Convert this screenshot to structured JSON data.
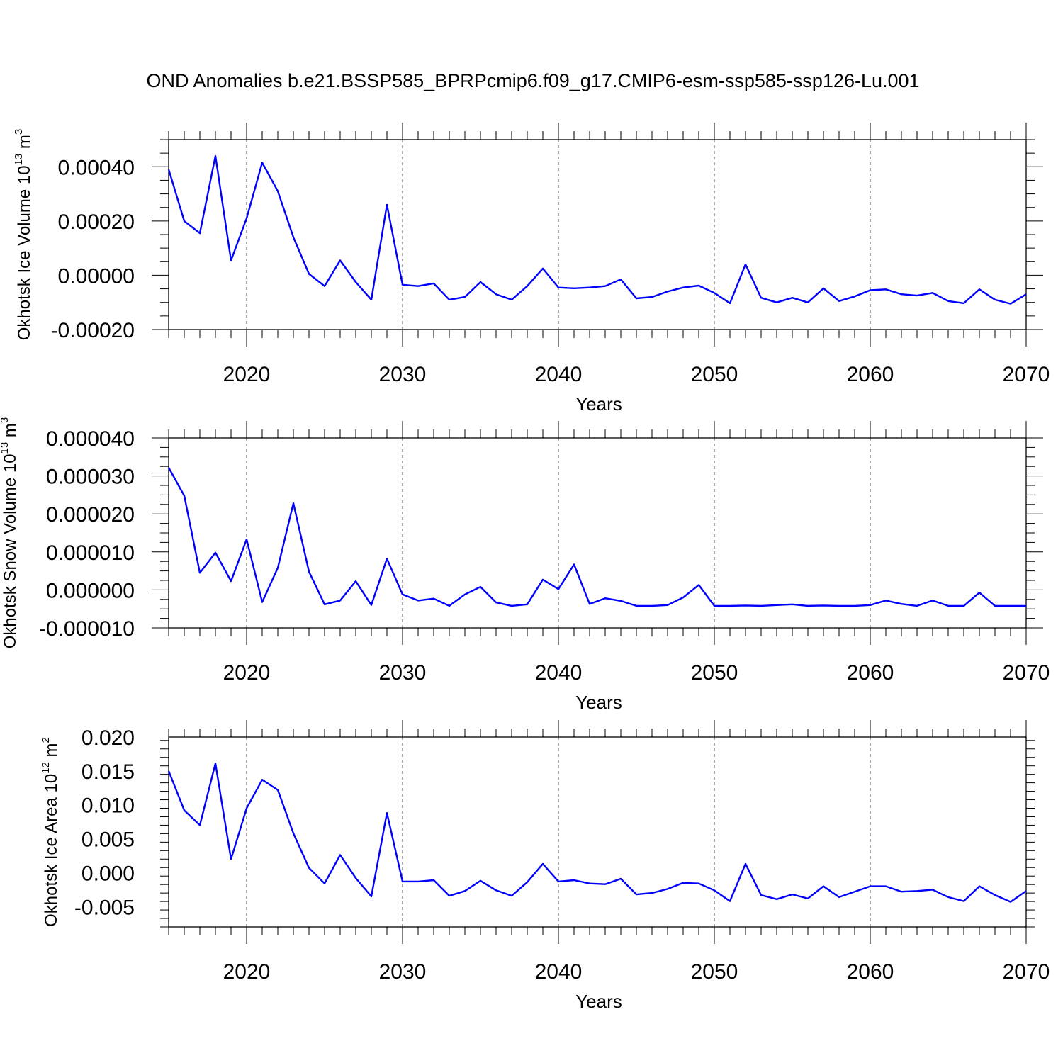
{
  "figure": {
    "title": "OND Anomalies b.e21.BSSP585_BPRPcmip6.f09_g17.CMIP6-esm-ssp585-ssp126-Lu.001"
  },
  "style": {
    "line_color": "#0000ff",
    "grid_color": "#555555"
  },
  "chart_data": [
    {
      "type": "line",
      "xlabel": "Years",
      "ylabel": "Okhotsk Ice Volume 10",
      "ylabel_exp": "13",
      "ylabel_unit": "m",
      "ylabel_unit_exp": "3",
      "xlim": [
        2015,
        2070
      ],
      "ylim": [
        -0.0002,
        0.0005
      ],
      "x_ticks": [
        2020,
        2030,
        2040,
        2050,
        2060,
        2070
      ],
      "x_tick_labels": [
        "2020",
        "2030",
        "2040",
        "2050",
        "2060",
        "2070"
      ],
      "y_ticks": [
        -0.0002,
        0.0,
        0.0002,
        0.0004
      ],
      "y_tick_labels": [
        "-0.00020",
        "0.00000",
        "0.00020",
        "0.00040"
      ],
      "grid": "vertical dashed at major x ticks",
      "x": [
        2015,
        2016,
        2017,
        2018,
        2019,
        2020,
        2021,
        2022,
        2023,
        2024,
        2025,
        2026,
        2027,
        2028,
        2029,
        2030,
        2031,
        2032,
        2033,
        2034,
        2035,
        2036,
        2037,
        2038,
        2039,
        2040,
        2041,
        2042,
        2043,
        2044,
        2045,
        2046,
        2047,
        2048,
        2049,
        2050,
        2051,
        2052,
        2053,
        2054,
        2055,
        2056,
        2057,
        2058,
        2059,
        2060,
        2061,
        2062,
        2063,
        2064,
        2065,
        2066,
        2067,
        2068,
        2069,
        2070
      ],
      "series": [
        {
          "values": [
            0.00039,
            0.0002,
            0.000155,
            0.00044,
            5.5e-05,
            0.00021,
            0.000415,
            0.00031,
            0.00014,
            5e-06,
            -4e-05,
            5.5e-05,
            -2.5e-05,
            -9e-05,
            0.00026,
            -3.5e-05,
            -4e-05,
            -3e-05,
            -9e-05,
            -8e-05,
            -2.5e-05,
            -7e-05,
            -9e-05,
            -4e-05,
            2.5e-05,
            -4.5e-05,
            -4.8e-05,
            -4.5e-05,
            -4e-05,
            -1.5e-05,
            -8.5e-05,
            -8e-05,
            -6e-05,
            -4.5e-05,
            -3.8e-05,
            -6.5e-05,
            -0.000103,
            4e-05,
            -8.3e-05,
            -0.0001,
            -8.3e-05,
            -0.0001,
            -4.8e-05,
            -9.5e-05,
            -7.8e-05,
            -5.5e-05,
            -5.2e-05,
            -7e-05,
            -7.5e-05,
            -6.5e-05,
            -9.5e-05,
            -0.000103,
            -5.2e-05,
            -9e-05,
            -0.000105,
            -7e-05
          ]
        }
      ]
    },
    {
      "type": "line",
      "xlabel": "Years",
      "ylabel": "Okhotsk Snow Volume 10",
      "ylabel_exp": "13",
      "ylabel_unit": "m",
      "ylabel_unit_exp": "3",
      "xlim": [
        2015,
        2070
      ],
      "ylim": [
        -1e-05,
        4e-05
      ],
      "x_ticks": [
        2020,
        2030,
        2040,
        2050,
        2060,
        2070
      ],
      "x_tick_labels": [
        "2020",
        "2030",
        "2040",
        "2050",
        "2060",
        "2070"
      ],
      "y_ticks": [
        -1e-05,
        0.0,
        1e-05,
        2e-05,
        3e-05,
        4e-05
      ],
      "y_tick_labels": [
        "-0.000010",
        "0.000000",
        "0.000010",
        "0.000020",
        "0.000030",
        "0.000040"
      ],
      "grid": "vertical dashed at major x ticks",
      "x": [
        2015,
        2016,
        2017,
        2018,
        2019,
        2020,
        2021,
        2022,
        2023,
        2024,
        2025,
        2026,
        2027,
        2028,
        2029,
        2030,
        2031,
        2032,
        2033,
        2034,
        2035,
        2036,
        2037,
        2038,
        2039,
        2040,
        2041,
        2042,
        2043,
        2044,
        2045,
        2046,
        2047,
        2048,
        2049,
        2050,
        2051,
        2052,
        2053,
        2054,
        2055,
        2056,
        2057,
        2058,
        2059,
        2060,
        2061,
        2062,
        2063,
        2064,
        2065,
        2066,
        2067,
        2068,
        2069,
        2070
      ],
      "series": [
        {
          "values": [
            3.22e-05,
            2.48e-05,
            4.5e-06,
            9.8e-06,
            2.3e-06,
            1.33e-05,
            -3.2e-06,
            5.8e-06,
            2.28e-05,
            4.8e-06,
            -3.8e-06,
            -2.8e-06,
            2.3e-06,
            -4e-06,
            8.2e-06,
            -1.2e-06,
            -2.8e-06,
            -2.3e-06,
            -4.2e-06,
            -1.2e-06,
            8e-07,
            -3.3e-06,
            -4.2e-06,
            -3.8e-06,
            2.7e-06,
            2e-07,
            6.7e-06,
            -3.7e-06,
            -2.2e-06,
            -2.9e-06,
            -4.2e-06,
            -4.2e-06,
            -4e-06,
            -2e-06,
            1.3e-06,
            -4.2e-06,
            -4.2e-06,
            -4.1e-06,
            -4.2e-06,
            -4e-06,
            -3.8e-06,
            -4.2e-06,
            -4.1e-06,
            -4.2e-06,
            -4.2e-06,
            -4e-06,
            -2.8e-06,
            -3.7e-06,
            -4.2e-06,
            -2.8e-06,
            -4.2e-06,
            -4.2e-06,
            -7e-07,
            -4.2e-06,
            -4.2e-06,
            -4.2e-06
          ]
        }
      ]
    },
    {
      "type": "line",
      "xlabel": "Years",
      "ylabel": "Okhotsk Ice Area 10",
      "ylabel_exp": "12",
      "ylabel_unit": "m",
      "ylabel_unit_exp": "2",
      "xlim": [
        2015,
        2070
      ],
      "ylim": [
        -0.008,
        0.02
      ],
      "x_ticks": [
        2020,
        2030,
        2040,
        2050,
        2060,
        2070
      ],
      "x_tick_labels": [
        "2020",
        "2030",
        "2040",
        "2050",
        "2060",
        "2070"
      ],
      "y_ticks": [
        -0.005,
        0.0,
        0.005,
        0.01,
        0.015,
        0.02
      ],
      "y_tick_labels": [
        "-0.005",
        "0.000",
        "0.005",
        "0.010",
        "0.015",
        "0.020"
      ],
      "grid": "vertical dashed at major x ticks",
      "x": [
        2015,
        2016,
        2017,
        2018,
        2019,
        2020,
        2021,
        2022,
        2023,
        2024,
        2025,
        2026,
        2027,
        2028,
        2029,
        2030,
        2031,
        2032,
        2033,
        2034,
        2035,
        2036,
        2037,
        2038,
        2039,
        2040,
        2041,
        2042,
        2043,
        2044,
        2045,
        2046,
        2047,
        2048,
        2049,
        2050,
        2051,
        2052,
        2053,
        2054,
        2055,
        2056,
        2057,
        2058,
        2059,
        2060,
        2061,
        2062,
        2063,
        2064,
        2065,
        2066,
        2067,
        2068,
        2069,
        2070
      ],
      "series": [
        {
          "values": [
            0.015,
            0.0092,
            0.007,
            0.0161,
            0.002,
            0.0095,
            0.0137,
            0.0122,
            0.0058,
            0.0007,
            -0.0016,
            0.0026,
            -0.0008,
            -0.0035,
            0.0088,
            -0.0013,
            -0.0013,
            -0.0011,
            -0.0034,
            -0.0027,
            -0.0012,
            -0.0026,
            -0.0034,
            -0.0014,
            0.0013,
            -0.0013,
            -0.0011,
            -0.0016,
            -0.0017,
            -0.0009,
            -0.0032,
            -0.003,
            -0.0024,
            -0.0015,
            -0.0016,
            -0.0026,
            -0.0042,
            0.0013,
            -0.0033,
            -0.0039,
            -0.0032,
            -0.0038,
            -0.002,
            -0.0036,
            -0.0028,
            -0.002,
            -0.002,
            -0.0028,
            -0.0027,
            -0.0025,
            -0.0036,
            -0.0042,
            -0.002,
            -0.0033,
            -0.0043,
            -0.0027
          ]
        }
      ]
    }
  ]
}
